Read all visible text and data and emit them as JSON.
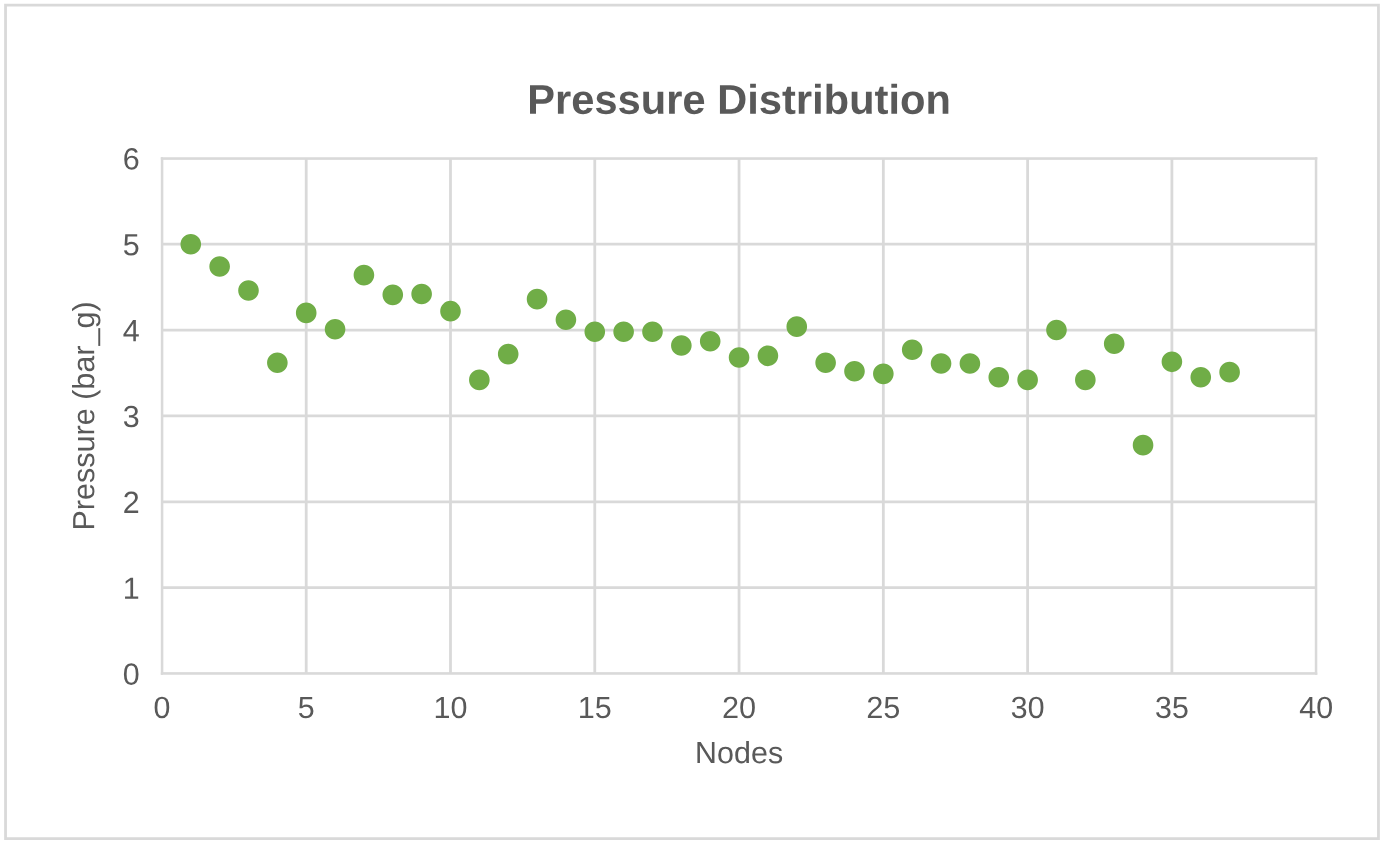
{
  "chart_data": {
    "type": "scatter",
    "title": "Pressure Distribution",
    "xlabel": "Nodes",
    "ylabel": "Pressure (bar_g)",
    "x": [
      1,
      2,
      3,
      4,
      5,
      6,
      7,
      8,
      9,
      10,
      11,
      12,
      13,
      14,
      15,
      16,
      17,
      18,
      19,
      20,
      21,
      22,
      23,
      24,
      25,
      26,
      27,
      28,
      29,
      30,
      31,
      32,
      33,
      34,
      35,
      36,
      37
    ],
    "series": [
      {
        "color": "#70ad47",
        "values": [
          5.0,
          4.74,
          4.46,
          3.62,
          4.2,
          4.01,
          4.64,
          4.41,
          4.42,
          4.22,
          3.42,
          3.72,
          4.36,
          4.12,
          3.98,
          3.98,
          3.98,
          3.82,
          3.87,
          3.68,
          3.7,
          4.04,
          3.62,
          3.52,
          3.49,
          3.77,
          3.61,
          3.61,
          3.45,
          3.42,
          4.0,
          3.42,
          3.84,
          2.66,
          3.63,
          3.45,
          3.51
        ]
      }
    ],
    "xlim": [
      0,
      40
    ],
    "xticks": [
      0,
      5,
      10,
      15,
      20,
      25,
      30,
      35,
      40
    ],
    "ylim": [
      0,
      6
    ],
    "yticks": [
      0,
      1,
      2,
      3,
      4,
      5,
      6
    ],
    "grid": true,
    "marker": "circle"
  }
}
